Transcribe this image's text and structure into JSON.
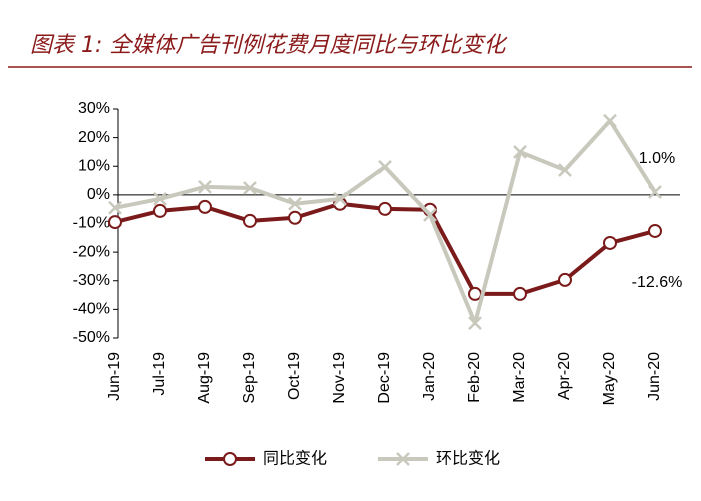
{
  "chart_data": {
    "type": "line",
    "title": "图表 1: 全媒体广告刊例花费月度同比与环比变化",
    "categories": [
      "Jun-19",
      "Jul-19",
      "Aug-19",
      "Sep-19",
      "Oct-19",
      "Nov-19",
      "Dec-19",
      "Jan-20",
      "Feb-20",
      "Mar-20",
      "Apr-20",
      "May-20",
      "Jun-20"
    ],
    "series": [
      {
        "name": "同比变化",
        "color": "#7b1a1a",
        "marker": "circle",
        "values": [
          -9.5,
          -5.6,
          -4.2,
          -9.1,
          -8.0,
          -3.1,
          -4.9,
          -5.2,
          -34.6,
          -34.6,
          -29.7,
          -16.8,
          -12.6
        ],
        "value_labels": [
          null,
          null,
          null,
          null,
          null,
          null,
          null,
          null,
          null,
          null,
          null,
          null,
          "-12.6%"
        ]
      },
      {
        "name": "环比变化",
        "color": "#c8c8bd",
        "marker": "x",
        "values": [
          -4.5,
          -1.4,
          2.8,
          2.4,
          -3.1,
          -1.4,
          9.8,
          -7.0,
          -44.8,
          15.0,
          8.7,
          25.9,
          1.0
        ],
        "value_labels": [
          null,
          null,
          null,
          null,
          null,
          null,
          null,
          null,
          null,
          null,
          null,
          null,
          "1.0%"
        ]
      }
    ],
    "ylim": [
      -50,
      30
    ],
    "yticks": [
      {
        "value": 30,
        "label": "30%"
      },
      {
        "value": 20,
        "label": "20%"
      },
      {
        "value": 10,
        "label": "10%"
      },
      {
        "value": 0,
        "label": "0%"
      },
      {
        "value": -10,
        "label": "-10%"
      },
      {
        "value": -20,
        "label": "-20%"
      },
      {
        "value": -30,
        "label": "-30%"
      },
      {
        "value": -40,
        "label": "-40%"
      },
      {
        "value": -50,
        "label": "-50%"
      }
    ],
    "grid": false
  }
}
